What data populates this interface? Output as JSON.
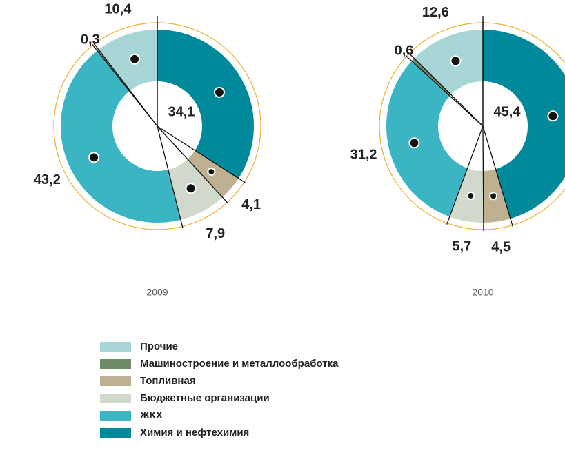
{
  "legend": {
    "categories": [
      "Прочие",
      "Машиностроение и металлообработка",
      "Топливная",
      "Бюджетные организации",
      "ЖКХ",
      "Химия и нефтехимия"
    ],
    "colors": [
      "#a8d5d5",
      "#6e8a66",
      "#c0b092",
      "#d0d9cc",
      "#3bb5c4",
      "#00899a"
    ]
  },
  "chart_data": [
    {
      "type": "pie",
      "title": "2009",
      "values": [
        10.4,
        0.3,
        4.1,
        7.9,
        43.2,
        34.1
      ],
      "value_labels": [
        "10,4",
        "0,3",
        "4,1",
        "7,9",
        "43,2",
        "34,1"
      ]
    },
    {
      "type": "pie",
      "title": "2010",
      "values": [
        12.6,
        0.6,
        4.5,
        5.7,
        31.2,
        45.4
      ],
      "value_labels": [
        "12,6",
        "0,6",
        "4,5",
        "5,7",
        "31,2",
        "45,4"
      ]
    }
  ]
}
